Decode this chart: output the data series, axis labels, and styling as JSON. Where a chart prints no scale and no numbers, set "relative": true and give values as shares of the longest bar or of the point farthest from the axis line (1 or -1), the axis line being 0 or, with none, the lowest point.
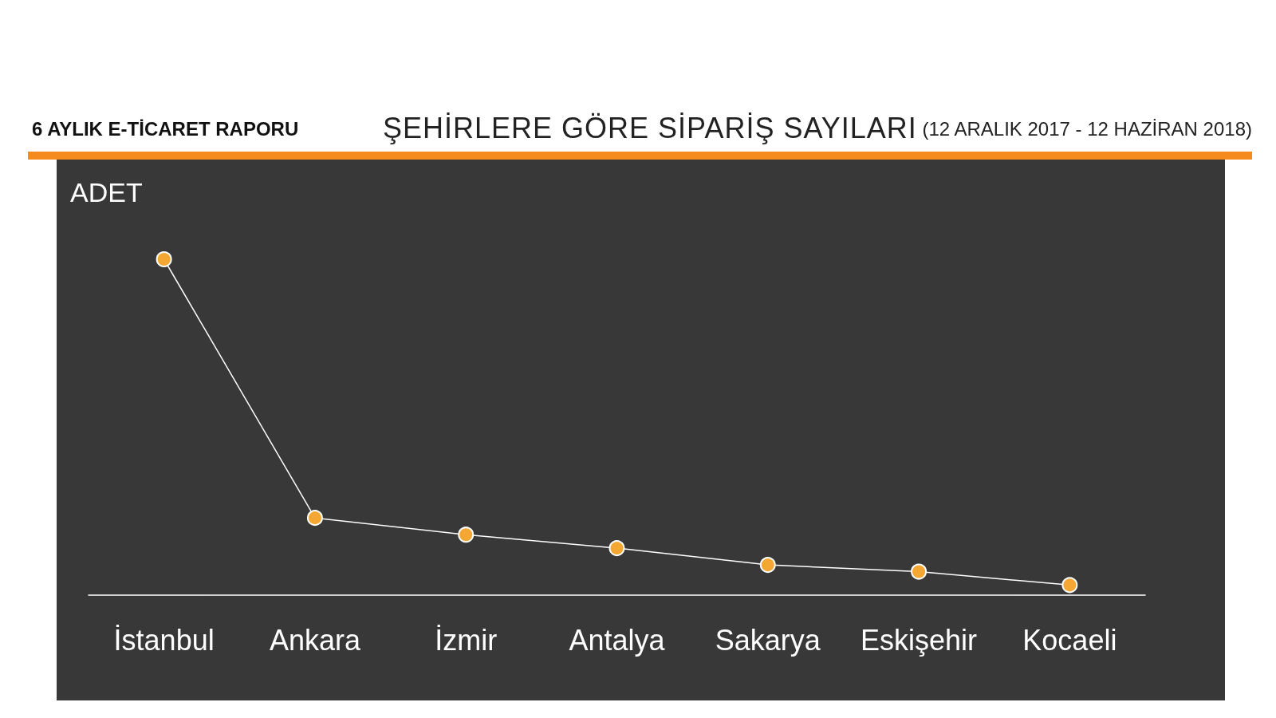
{
  "chart_data": {
    "type": "line",
    "title": "ŞEHİRLERE GÖRE SİPARİŞ SAYILARI",
    "subtitle": "6 AYLIK E-TİCARET RAPORU",
    "annotations": [
      "(12 ARALIK 2017 - 12 HAZİRAN 2018)"
    ],
    "ylabel": "ADET",
    "relative": true,
    "marker": "circle",
    "categories": [
      "İstanbul",
      "Ankara",
      "İzmir",
      "Antalya",
      "Sakarya",
      "Eskişehir",
      "Kocaeli"
    ],
    "series": [
      {
        "color": "#f5a733",
        "values": [
          1,
          0.23,
          0.18,
          0.14,
          0.09,
          0.07,
          0.03
        ]
      }
    ]
  }
}
